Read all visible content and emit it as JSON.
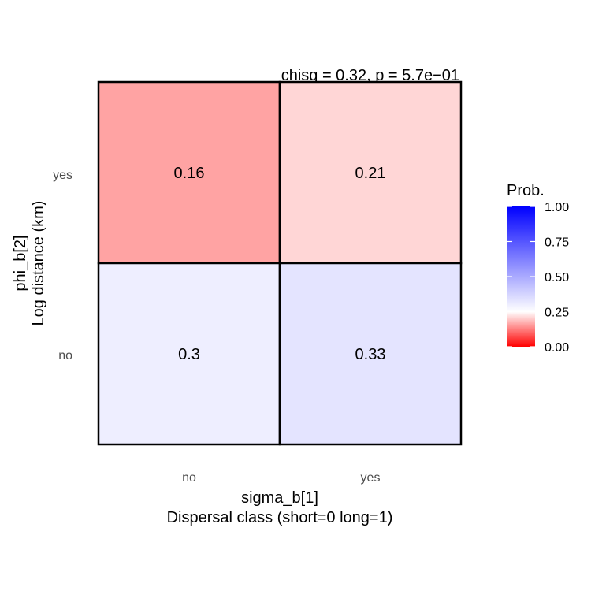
{
  "chart_data": {
    "type": "heatmap",
    "annotation": "chisq = 0.32, p = 5.7e−01",
    "x_categories": [
      "no",
      "yes"
    ],
    "y_categories": [
      "no",
      "yes"
    ],
    "xlabel_line1": "sigma_b[1]",
    "xlabel_line2": "Dispersal class (short=0 long=1)",
    "ylabel_line1": "phi_b[2]",
    "ylabel_line2": "Log distance (km)",
    "cells": [
      {
        "x": "no",
        "y": "yes",
        "value": 0.16,
        "label": "0.16"
      },
      {
        "x": "yes",
        "y": "yes",
        "value": 0.21,
        "label": "0.21"
      },
      {
        "x": "no",
        "y": "no",
        "value": 0.3,
        "label": "0.3"
      },
      {
        "x": "yes",
        "y": "no",
        "value": 0.33,
        "label": "0.33"
      }
    ],
    "legend": {
      "title": "Prob.",
      "placement": "right",
      "ticks": [
        1.0,
        0.75,
        0.5,
        0.25,
        0.0
      ],
      "tick_labels": [
        "1.00",
        "0.75",
        "0.50",
        "0.25",
        "0.00"
      ],
      "range": [
        0,
        1
      ],
      "midpoint": 0.25,
      "colors": {
        "low": "#ff0000",
        "mid": "#ffffff",
        "high": "#0000ff"
      }
    }
  }
}
